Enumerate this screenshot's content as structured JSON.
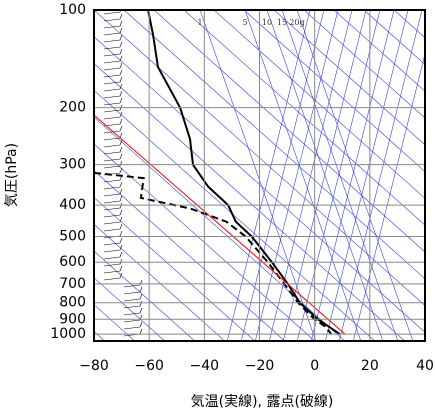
{
  "chart_data": {
    "type": "line",
    "xlabel": "気温(実線), 露点(破線)",
    "ylabel": "気圧(hPa)",
    "xlim": [
      -80,
      40
    ],
    "xticks": [
      {
        "value": -80,
        "label": "−80"
      },
      {
        "value": -60,
        "label": "−60"
      },
      {
        "value": -40,
        "label": "−40"
      },
      {
        "value": -20,
        "label": "−20"
      },
      0,
      20,
      40
    ],
    "ylim": [
      1050,
      100
    ],
    "yticks": [
      100,
      200,
      300,
      400,
      500,
      600,
      700,
      800,
      900,
      1000
    ],
    "ylog": true,
    "grid": true,
    "annotations": [
      "1",
      "5",
      "10",
      "15",
      "20g"
    ],
    "series": [
      {
        "color": "#000000",
        "dash": false,
        "width": 2,
        "x": [
          -60.4,
          -58.6,
          -56.8,
          -48.8,
          -45.2,
          -44.1,
          -38.7,
          -31.4,
          -28.6,
          -22.8,
          -15.5,
          -9.7,
          -5.4,
          1.2,
          9.1
        ],
        "y": [
          100,
          119,
          150,
          200,
          250,
          300,
          350,
          400,
          450,
          500,
          600,
          700,
          800,
          900,
          1000
        ]
      },
      {
        "color": "#000000",
        "dash": true,
        "width": 2,
        "x": [
          -80,
          -62,
          -63,
          -45,
          -32,
          -25,
          -17,
          -11,
          -6,
          0,
          4,
          6
        ],
        "y": [
          318,
          330,
          380,
          410,
          450,
          500,
          600,
          700,
          800,
          900,
          950,
          1000
        ]
      },
      {
        "color": "#ff0000",
        "dash": false,
        "width": 1,
        "x": [
          -80,
          11
        ],
        "y": [
          211,
          1000
        ]
      }
    ]
  }
}
